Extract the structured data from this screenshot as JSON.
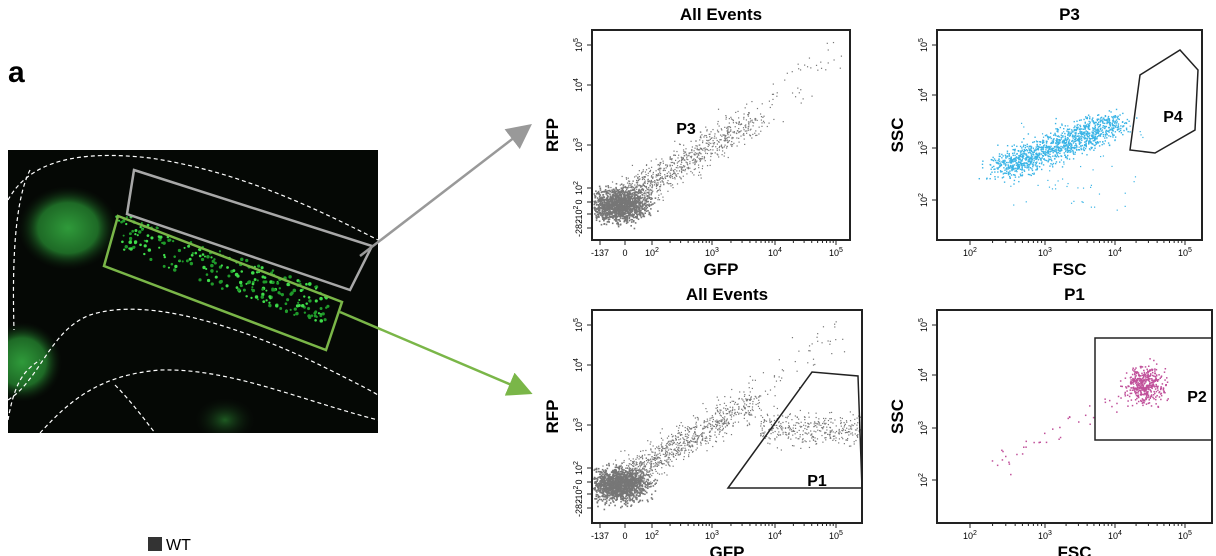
{
  "panel_label": "a",
  "legend": {
    "label": "WT"
  },
  "plots": [
    {
      "title": "All Events",
      "x_label": "GFP",
      "y_label": "RFP",
      "gate_label": "P3",
      "x_ticks": [
        "-137",
        "0",
        {
          "base": "10",
          "exp": "2"
        },
        {
          "base": "10",
          "exp": "3"
        },
        {
          "base": "10",
          "exp": "4"
        },
        {
          "base": "10",
          "exp": "5"
        }
      ],
      "y_ticks": [
        "-282",
        {
          "sign": "-",
          "base": "10",
          "exp": "2"
        },
        "0",
        {
          "base": "10",
          "exp": "2"
        },
        {
          "base": "10",
          "exp": "3"
        },
        {
          "base": "10",
          "exp": "4"
        },
        {
          "base": "10",
          "exp": "5"
        }
      ]
    },
    {
      "title": "P3",
      "x_label": "FSC",
      "y_label": "SSC",
      "gate_label": "P4",
      "x_ticks": [
        {
          "base": "10",
          "exp": "2"
        },
        {
          "base": "10",
          "exp": "3"
        },
        {
          "base": "10",
          "exp": "4"
        },
        {
          "base": "10",
          "exp": "5"
        }
      ],
      "y_ticks": [
        {
          "base": "10",
          "exp": "2"
        },
        {
          "base": "10",
          "exp": "3"
        },
        {
          "base": "10",
          "exp": "4"
        },
        {
          "base": "10",
          "exp": "5"
        }
      ]
    },
    {
      "title": "All Events",
      "x_label": "GFP",
      "y_label": "RFP",
      "gate_label": "P1",
      "x_ticks": [
        "-137",
        "0",
        {
          "base": "10",
          "exp": "2"
        },
        {
          "base": "10",
          "exp": "3"
        },
        {
          "base": "10",
          "exp": "4"
        },
        {
          "base": "10",
          "exp": "5"
        }
      ],
      "y_ticks": [
        "-282",
        {
          "sign": "-",
          "base": "10",
          "exp": "2"
        },
        "0",
        {
          "base": "10",
          "exp": "2"
        },
        {
          "base": "10",
          "exp": "3"
        },
        {
          "base": "10",
          "exp": "4"
        },
        {
          "base": "10",
          "exp": "5"
        }
      ]
    },
    {
      "title": "P1",
      "x_label": "FSC",
      "y_label": "SSC",
      "gate_label": "P2",
      "x_ticks": [
        {
          "base": "10",
          "exp": "2"
        },
        {
          "base": "10",
          "exp": "3"
        },
        {
          "base": "10",
          "exp": "4"
        },
        {
          "base": "10",
          "exp": "5"
        }
      ],
      "y_ticks": [
        {
          "base": "10",
          "exp": "2"
        },
        {
          "base": "10",
          "exp": "3"
        },
        {
          "base": "10",
          "exp": "4"
        },
        {
          "base": "10",
          "exp": "5"
        }
      ]
    }
  ]
}
